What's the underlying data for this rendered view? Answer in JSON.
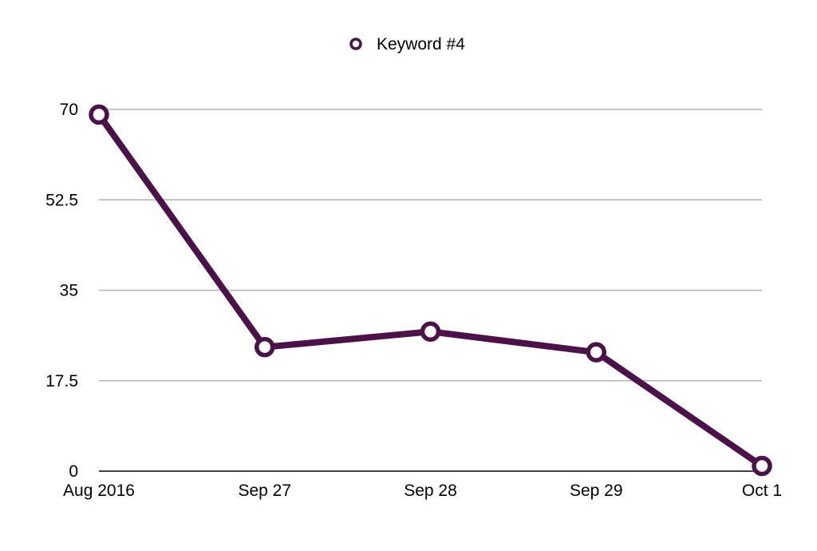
{
  "chart_data": {
    "type": "line",
    "categories": [
      "Aug 2016",
      "Sep 27",
      "Sep 28",
      "Sep 29",
      "Oct 1"
    ],
    "series": [
      {
        "name": "Keyword #4",
        "values": [
          69,
          24,
          27,
          23,
          1
        ],
        "color": "#4a1248"
      }
    ],
    "ylim": [
      0,
      70
    ],
    "yticks": [
      0,
      17.5,
      35,
      52.5,
      70
    ],
    "ytick_labels": [
      "0",
      "17.5",
      "35",
      "52.5",
      "70"
    ],
    "xlabel": "",
    "ylabel": "",
    "title": "",
    "grid": true,
    "legend_position": "top-center",
    "gridline_color": "#b3b3b3",
    "axis_color": "#000000"
  }
}
